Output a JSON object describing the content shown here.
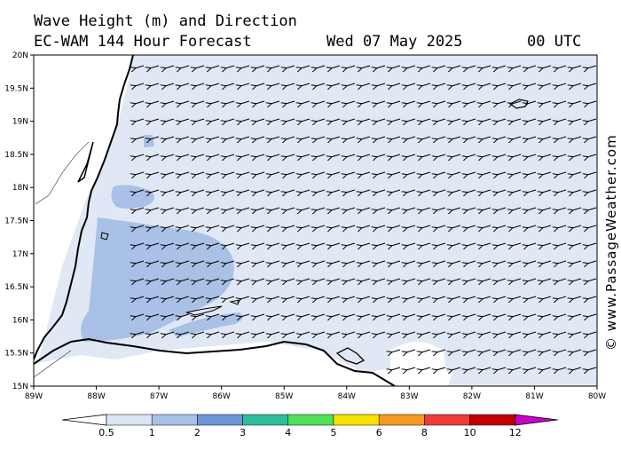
{
  "header": {
    "title": "Wave Height (m) and Direction",
    "subtitle": "EC-WAM 144 Hour Forecast",
    "valid_date": "Wed 07 May 2025",
    "valid_time": "00 UTC"
  },
  "credit": "© www.PassageWeather.com",
  "map": {
    "lat_labels": [
      "20N",
      "19.5N",
      "19N",
      "18.5N",
      "18N",
      "17.5N",
      "17N",
      "16.5N",
      "16N",
      "15.5N",
      "15N"
    ],
    "lon_labels": [
      "89W",
      "88W",
      "87W",
      "86W",
      "85W",
      "84W",
      "83W",
      "82W",
      "81W",
      "80W"
    ],
    "lat_range": [
      15,
      20
    ],
    "lon_range": [
      -89,
      -80
    ],
    "wave_direction": "from east-northeast",
    "colors": {
      "ocean_base": "#e0e8f5",
      "band_0_5_1": "#dbe4f3",
      "band_1_2": "#a9c1e6",
      "coast": "#000000",
      "arrow": "#000000"
    }
  },
  "colorbar": {
    "labels": [
      "0.5",
      "1",
      "2",
      "3",
      "4",
      "5",
      "6",
      "8",
      "10",
      "12"
    ],
    "colors": [
      "#ffffff",
      "#dbe4f3",
      "#a9c1e6",
      "#6e95d6",
      "#2dbf9c",
      "#4fe05a",
      "#f5e200",
      "#f59a1e",
      "#ef3a3a",
      "#c00000",
      "#c800c8"
    ]
  }
}
